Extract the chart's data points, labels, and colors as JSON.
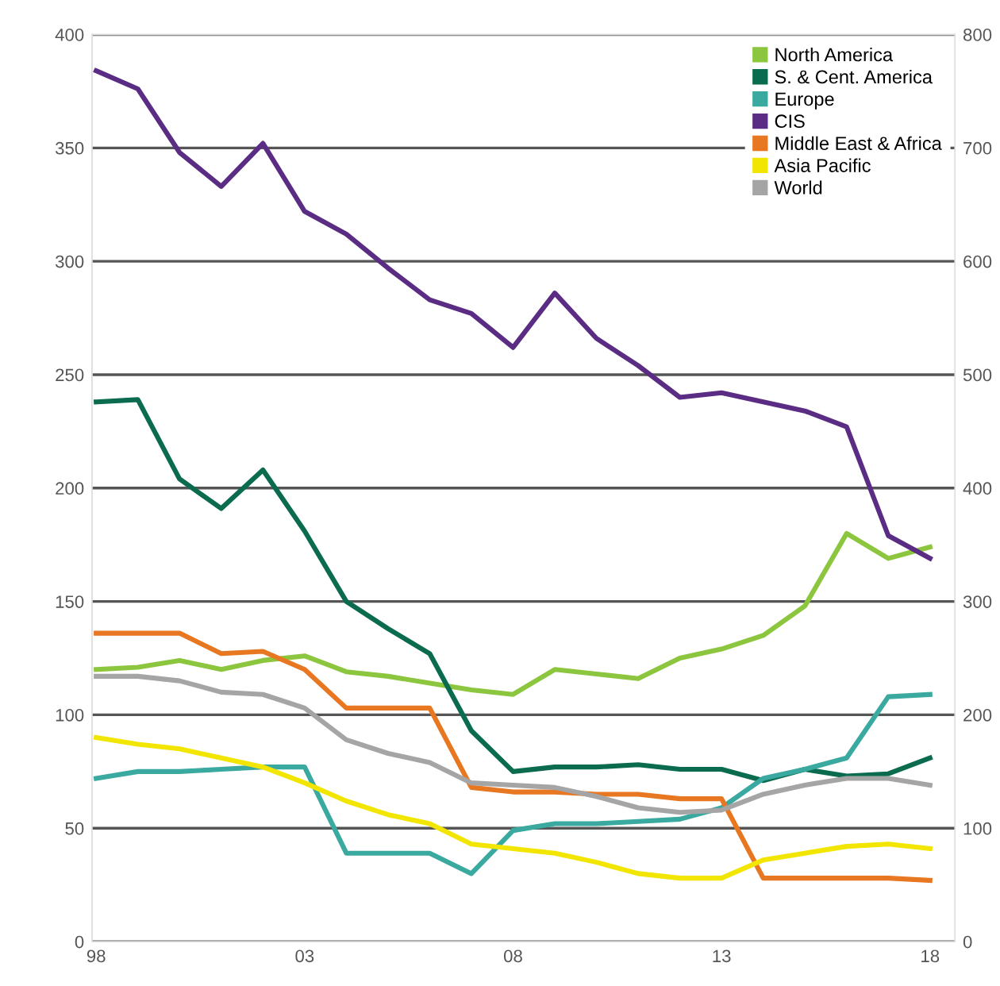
{
  "chart_data": {
    "type": "line",
    "x": [
      1998,
      1999,
      2000,
      2001,
      2002,
      2003,
      2004,
      2005,
      2006,
      2007,
      2008,
      2009,
      2010,
      2011,
      2012,
      2013,
      2014,
      2015,
      2016,
      2017,
      2018
    ],
    "series": [
      {
        "name": "North America",
        "color": "#8cc63f",
        "values": [
          120,
          121,
          124,
          120,
          124,
          126,
          119,
          117,
          114,
          111,
          109,
          120,
          118,
          116,
          125,
          129,
          135,
          148,
          180,
          169,
          174
        ]
      },
      {
        "name": "S. & Cent. America",
        "color": "#0b6b4f",
        "values": [
          238,
          239,
          204,
          191,
          208,
          181,
          150,
          138,
          127,
          93,
          75,
          77,
          77,
          78,
          76,
          76,
          71,
          76,
          73,
          74,
          81
        ]
      },
      {
        "name": "Europe",
        "color": "#3aa99f",
        "values": [
          72,
          75,
          75,
          76,
          77,
          77,
          39,
          39,
          39,
          30,
          49,
          52,
          52,
          53,
          54,
          59,
          72,
          76,
          81,
          108,
          109
        ]
      },
      {
        "name": "CIS",
        "color": "#5b2c83",
        "values": [
          384,
          376,
          348,
          333,
          352,
          322,
          312,
          297,
          283,
          277,
          262,
          286,
          266,
          254,
          240,
          242,
          238,
          234,
          227,
          179,
          169
        ]
      },
      {
        "name": "Middle East & Africa",
        "color": "#e87722",
        "values": [
          136,
          136,
          136,
          127,
          128,
          120,
          103,
          103,
          103,
          68,
          66,
          66,
          65,
          65,
          63,
          63,
          28,
          28,
          28,
          28,
          27
        ]
      },
      {
        "name": "Asia Pacific",
        "color": "#f2e600",
        "values": [
          90,
          87,
          85,
          81,
          77,
          70,
          62,
          56,
          52,
          43,
          41,
          39,
          35,
          30,
          28,
          28,
          36,
          39,
          42,
          43,
          41
        ]
      },
      {
        "name": "World",
        "color": "#a5a5a5",
        "values": [
          117,
          117,
          115,
          110,
          109,
          103,
          89,
          83,
          79,
          70,
          69,
          68,
          64,
          59,
          57,
          58,
          65,
          69,
          72,
          72,
          69
        ]
      }
    ],
    "xlim": [
      1997.9,
      2018.6
    ],
    "xticks": [
      {
        "value": 1998,
        "label": "98"
      },
      {
        "value": 2003,
        "label": "03"
      },
      {
        "value": 2008,
        "label": "08"
      },
      {
        "value": 2013,
        "label": "13"
      },
      {
        "value": 2018,
        "label": "18"
      }
    ],
    "ylim": [
      0,
      400
    ],
    "yticks": [
      0,
      50,
      100,
      150,
      200,
      250,
      300,
      350,
      400
    ],
    "y2lim": [
      0,
      800
    ],
    "y2ticks": [
      0,
      100,
      200,
      300,
      400,
      500,
      600,
      700,
      800
    ],
    "grid": "y",
    "legend": "top right",
    "marker": "none",
    "line_style": "solid"
  }
}
